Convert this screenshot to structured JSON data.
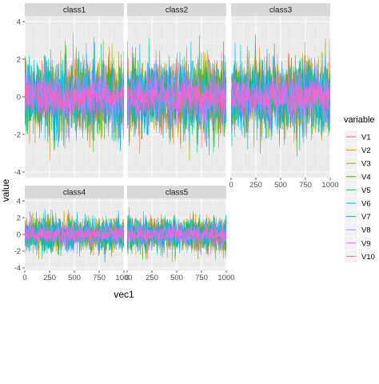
{
  "chart_data": {
    "type": "line",
    "facet_by": "class",
    "facets": [
      "class1",
      "class2",
      "class3",
      "class4",
      "class5"
    ],
    "x": {
      "label": "vec1",
      "range": [
        0,
        1000
      ],
      "ticks": [
        0,
        250,
        500,
        750,
        1000
      ]
    },
    "y": {
      "label": "value",
      "range": [
        -4.3,
        4.3
      ],
      "ticks": [
        -4,
        -2,
        0,
        2,
        4
      ]
    },
    "legend": {
      "title": "variable",
      "position": "right",
      "entries": [
        "V1",
        "V2",
        "V3",
        "V4",
        "V5",
        "V6",
        "V7",
        "V8",
        "V9",
        "V10"
      ]
    },
    "series": [
      {
        "name": "V1",
        "color": "#F8766D",
        "sd": 1.0
      },
      {
        "name": "V2",
        "color": "#D89000",
        "sd": 1.0
      },
      {
        "name": "V3",
        "color": "#A3A500",
        "sd": 1.0
      },
      {
        "name": "V4",
        "color": "#39B600",
        "sd": 1.0
      },
      {
        "name": "V5",
        "color": "#00BF7D",
        "sd": 1.0
      },
      {
        "name": "V6",
        "color": "#00BFC4",
        "sd": 1.0
      },
      {
        "name": "V7",
        "color": "#00B0F6",
        "sd": 1.0
      },
      {
        "name": "V8",
        "color": "#9590FF",
        "sd": 0.85
      },
      {
        "name": "V9",
        "color": "#E76BF3",
        "sd": 0.6
      },
      {
        "name": "V10",
        "color": "#FF62BC",
        "sd": 0.45
      }
    ],
    "x_values": "0 to 1000, step 1",
    "distribution": "random noise, mean approx. 0, values mostly within -3 to 3",
    "grid": true,
    "theme": {
      "panel_bg": "#EBEBEB",
      "strip_bg": "#D9D9D9",
      "grid_color": "#FFFFFF"
    }
  }
}
